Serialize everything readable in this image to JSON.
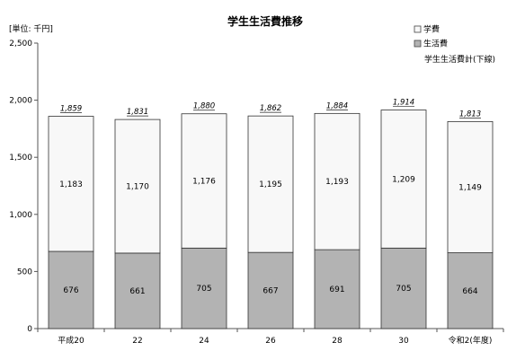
{
  "chart_data": {
    "type": "bar",
    "stacked": true,
    "title": "学生生活費推移",
    "unit_label": "[単位: 千円]",
    "categories": [
      "平成20",
      "22",
      "24",
      "26",
      "28",
      "30",
      "令和2(年度)"
    ],
    "series": [
      {
        "name": "生活費",
        "values": [
          676,
          661,
          705,
          667,
          691,
          705,
          664
        ],
        "color": "#b3b3b3"
      },
      {
        "name": "学費",
        "values": [
          1183,
          1170,
          1176,
          1195,
          1193,
          1209,
          1149
        ],
        "color": "#f8f8f8"
      }
    ],
    "value_labels": {
      "生活費": [
        "676",
        "661",
        "705",
        "667",
        "691",
        "705",
        "664"
      ],
      "学費": [
        "1,183",
        "1,170",
        "1,176",
        "1,195",
        "1,193",
        "1,209",
        "1,149"
      ]
    },
    "totals": [
      1859,
      1831,
      1880,
      1862,
      1884,
      1914,
      1813
    ],
    "total_labels": [
      "1,859",
      "1,831",
      "1,880",
      "1,862",
      "1,884",
      "1,914",
      "1,813"
    ],
    "total_legend": "学生生活費計(下線)",
    "ylim": [
      0,
      2500
    ],
    "yticks": [
      0,
      500,
      1000,
      1500,
      2000,
      2500
    ],
    "ytick_labels": [
      "0",
      "500",
      "1,000",
      "1,500",
      "2,000",
      "2,500"
    ],
    "grid": false,
    "legend_position": "top-right"
  }
}
